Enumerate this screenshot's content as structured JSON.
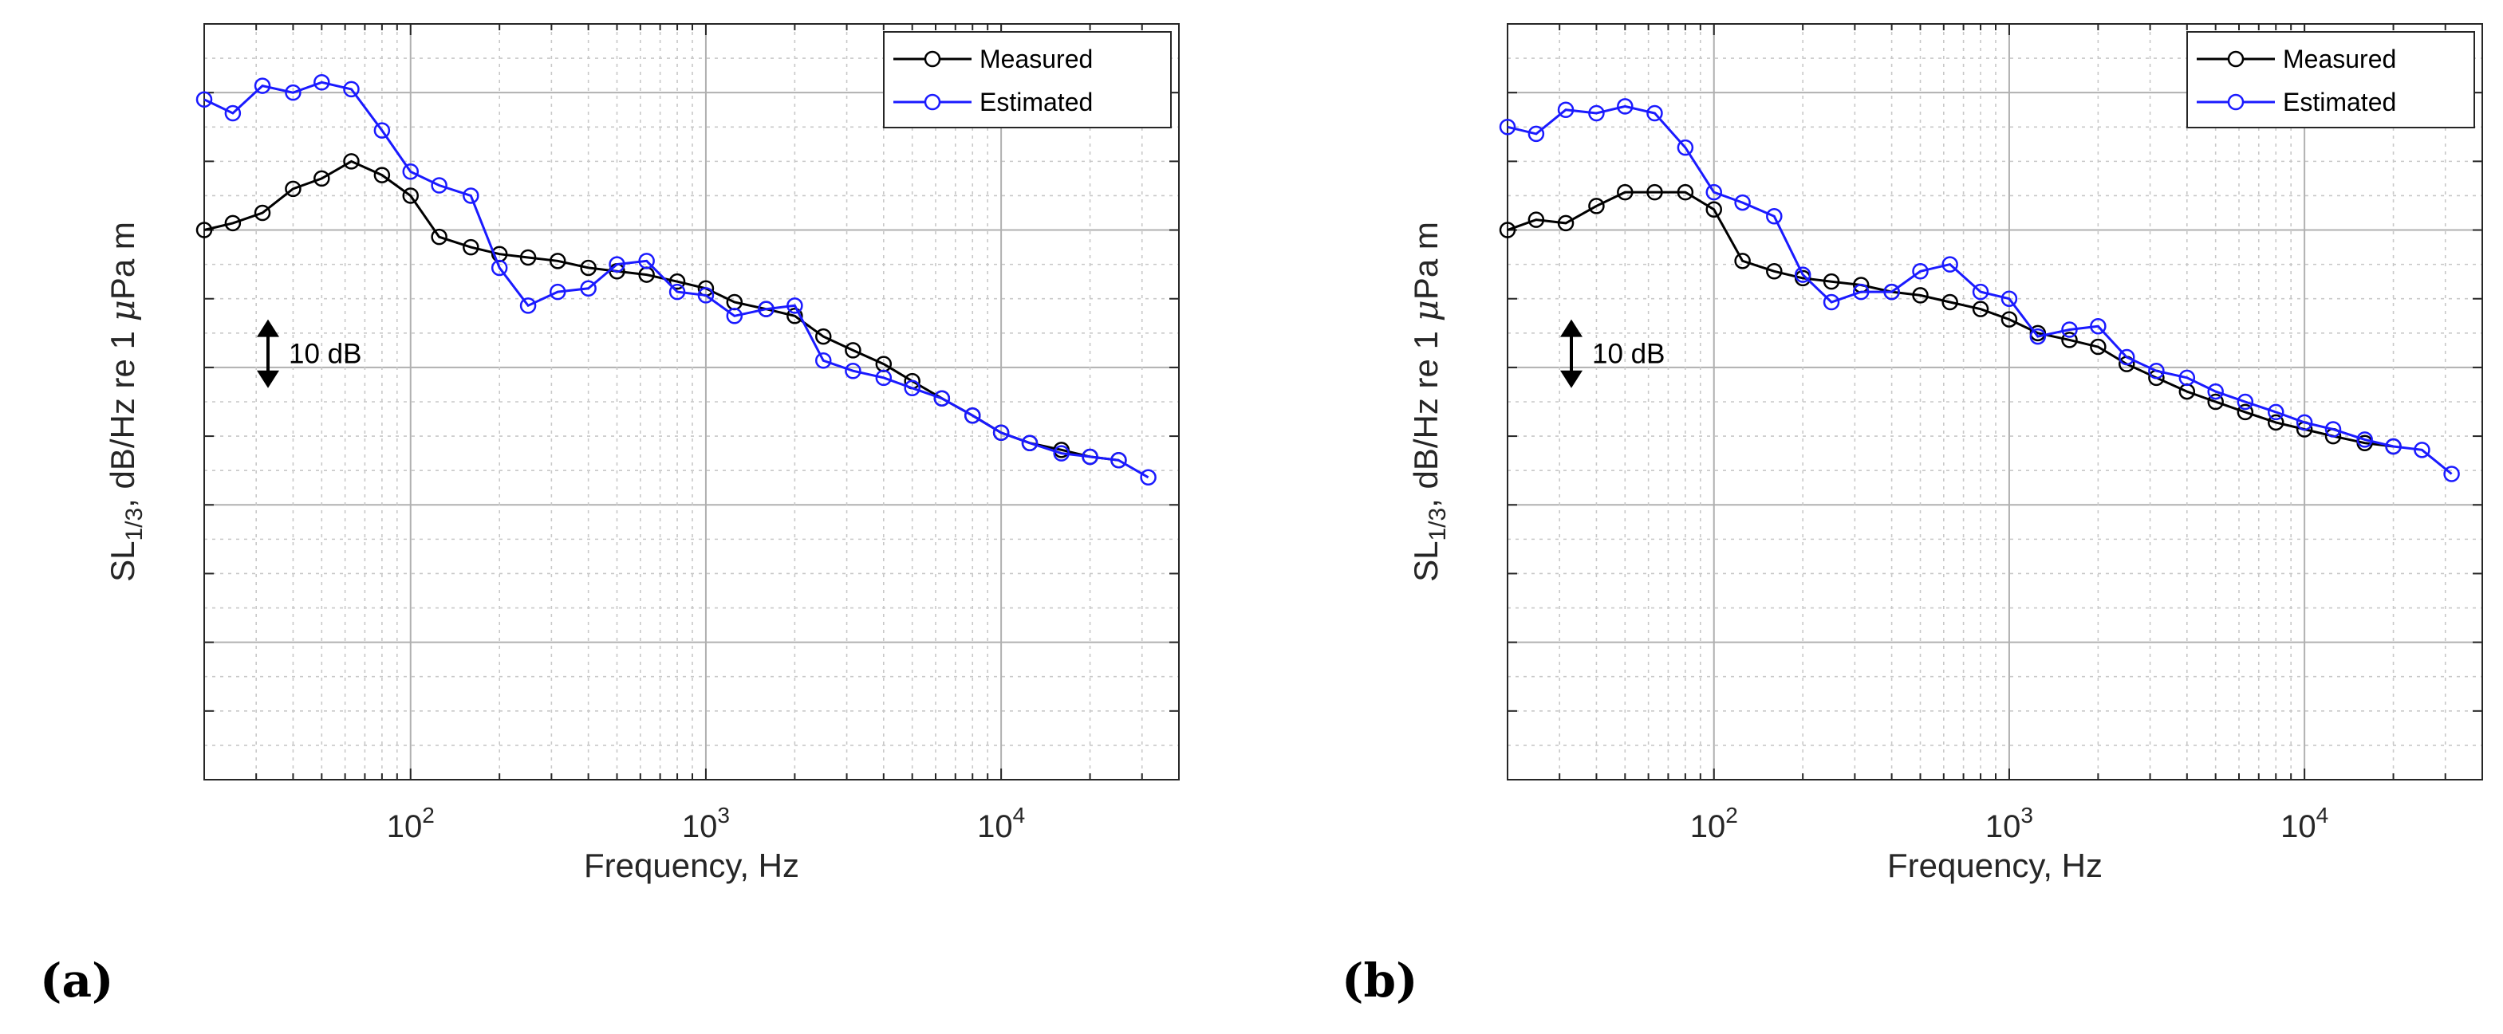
{
  "chart_data": [
    {
      "type": "line",
      "panel_label": "(a)",
      "title": "",
      "xlabel": "Frequency, Hz",
      "ylabel_main": "SL",
      "ylabel_sub": "1/3",
      "ylabel_rest": ", dB/Hz re 1 ",
      "ylabel_mu": "μ",
      "ylabel_end": "Pa m",
      "xscale": "log",
      "xlim": [
        20,
        40000
      ],
      "ylim": [
        -20,
        90
      ],
      "ytick_labels_visible": false,
      "x_tick_labels": [
        {
          "base": "10",
          "exp": "2",
          "value": 100
        },
        {
          "base": "10",
          "exp": "3",
          "value": 1000
        },
        {
          "base": "10",
          "exp": "4",
          "value": 10000
        }
      ],
      "grid": true,
      "legend_position": "top-right",
      "scale_bar_label": "10 dB",
      "scale_bar_value": 10,
      "series": [
        {
          "name": "Measured",
          "color": "#000000",
          "x": [
            20,
            25,
            31.5,
            40,
            50,
            63,
            80,
            100,
            125,
            160,
            200,
            250,
            315,
            400,
            500,
            630,
            800,
            1000,
            1250,
            1600,
            2000,
            2500,
            3150,
            4000,
            5000,
            6300,
            8000,
            10000,
            12500,
            16000,
            20000,
            25000
          ],
          "values": [
            60,
            61,
            62.5,
            66,
            67.5,
            70,
            68,
            65,
            59,
            57.5,
            56.5,
            56,
            55.5,
            54.5,
            54,
            53.5,
            52.5,
            51.5,
            49.5,
            48.5,
            47.5,
            44.5,
            42.5,
            40.5,
            38,
            35.5,
            33,
            30.5,
            29,
            28,
            27,
            26.5
          ]
        },
        {
          "name": "Estimated",
          "color": "#1a1aff",
          "x": [
            20,
            25,
            31.5,
            40,
            50,
            63,
            80,
            100,
            125,
            160,
            200,
            250,
            315,
            400,
            500,
            630,
            800,
            1000,
            1250,
            1600,
            2000,
            2500,
            3150,
            4000,
            5000,
            6300,
            8000,
            10000,
            12500,
            16000,
            20000,
            25000,
            31500
          ],
          "values": [
            79,
            77,
            81,
            80,
            81.5,
            80.5,
            74.5,
            68.5,
            66.5,
            65,
            54.5,
            49,
            51,
            51.5,
            55,
            55.5,
            51,
            50.5,
            47.5,
            48.5,
            49,
            41,
            39.5,
            38.5,
            37,
            35.5,
            33,
            30.5,
            29,
            27.5,
            27,
            26.5,
            24
          ]
        }
      ]
    },
    {
      "type": "line",
      "panel_label": "(b)",
      "title": "",
      "xlabel": "Frequency, Hz",
      "ylabel_main": "SL",
      "ylabel_sub": "1/3",
      "ylabel_rest": ", dB/Hz re 1 ",
      "ylabel_mu": "μ",
      "ylabel_end": "Pa m",
      "xscale": "log",
      "xlim": [
        20,
        40000
      ],
      "ylim": [
        -20,
        90
      ],
      "ytick_labels_visible": false,
      "x_tick_labels": [
        {
          "base": "10",
          "exp": "2",
          "value": 100
        },
        {
          "base": "10",
          "exp": "3",
          "value": 1000
        },
        {
          "base": "10",
          "exp": "4",
          "value": 10000
        }
      ],
      "grid": true,
      "legend_position": "top-right",
      "scale_bar_label": "10 dB",
      "scale_bar_value": 10,
      "series": [
        {
          "name": "Measured",
          "color": "#000000",
          "x": [
            20,
            25,
            31.5,
            40,
            50,
            63,
            80,
            100,
            125,
            160,
            200,
            250,
            315,
            400,
            500,
            630,
            800,
            1000,
            1250,
            1600,
            2000,
            2500,
            3150,
            4000,
            5000,
            6300,
            8000,
            10000,
            12500,
            16000,
            20000
          ],
          "values": [
            60,
            61.5,
            61,
            63.5,
            65.5,
            65.5,
            65.5,
            63,
            55.5,
            54,
            53,
            52.5,
            52,
            51,
            50.5,
            49.5,
            48.5,
            47,
            45,
            44,
            43,
            40.5,
            38.5,
            36.5,
            35,
            33.5,
            32,
            31,
            30,
            29,
            28.5
          ]
        },
        {
          "name": "Estimated",
          "color": "#1a1aff",
          "x": [
            20,
            25,
            31.5,
            40,
            50,
            63,
            80,
            100,
            125,
            160,
            200,
            250,
            315,
            400,
            500,
            630,
            800,
            1000,
            1250,
            1600,
            2000,
            2500,
            3150,
            4000,
            5000,
            6300,
            8000,
            10000,
            12500,
            16000,
            20000,
            25000,
            31500
          ],
          "values": [
            75,
            74,
            77.5,
            77,
            78,
            77,
            72,
            65.5,
            64,
            62,
            53.5,
            49.5,
            51,
            51,
            54,
            55,
            51,
            50,
            44.5,
            45.5,
            46,
            41.5,
            39.5,
            38.5,
            36.5,
            35,
            33.5,
            32,
            31,
            29.5,
            28.5,
            28,
            24.5
          ]
        }
      ]
    }
  ]
}
